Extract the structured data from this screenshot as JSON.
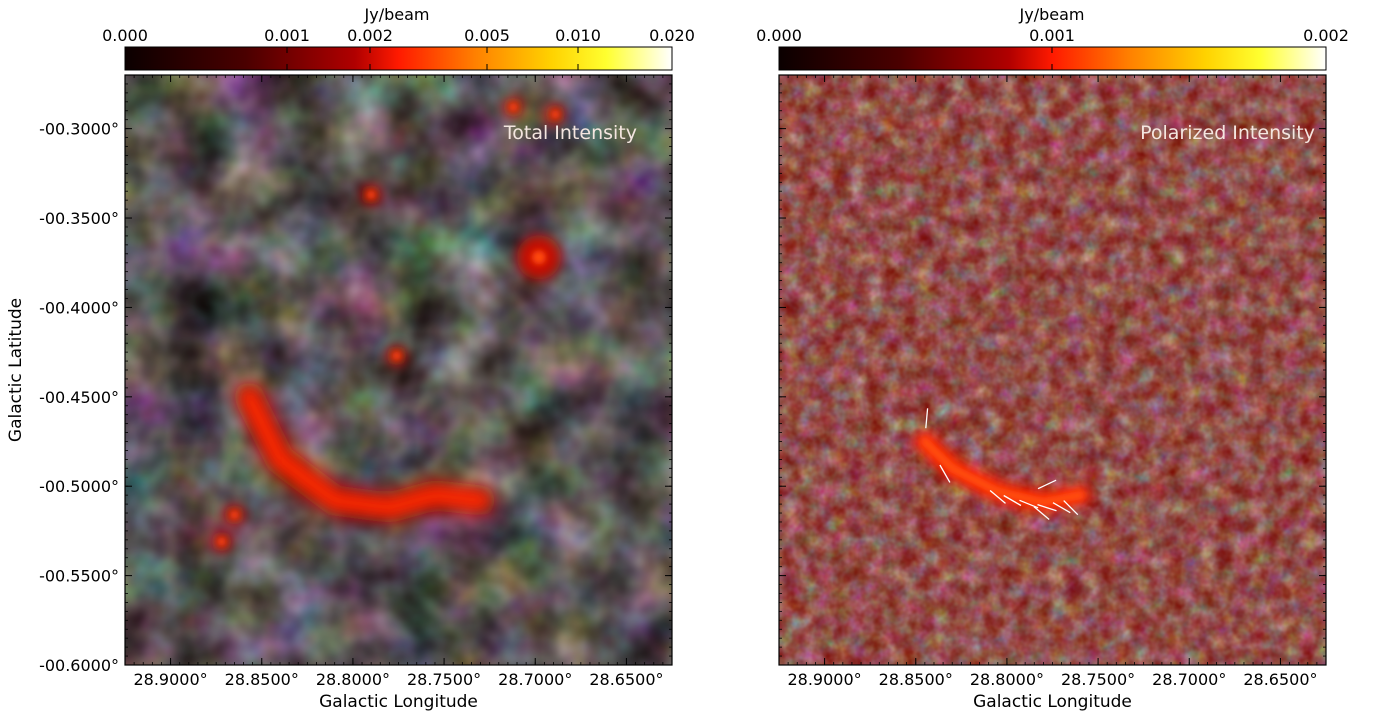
{
  "chart_data": [
    {
      "type": "heatmap",
      "title": "Total Intensity",
      "xlabel": "Galactic Longitude",
      "ylabel": "Galactic Latitude",
      "xlim": [
        28.925,
        28.625
      ],
      "ylim": [
        -0.6,
        -0.27
      ],
      "x_ticks": [
        28.9,
        28.85,
        28.8,
        28.75,
        28.7,
        28.65
      ],
      "x_tick_labels": [
        "28.9000°",
        "28.8500°",
        "28.8000°",
        "28.7500°",
        "28.7000°",
        "28.6500°"
      ],
      "y_ticks": [
        -0.3,
        -0.35,
        -0.4,
        -0.45,
        -0.5,
        -0.55,
        -0.6
      ],
      "y_tick_labels": [
        "-00.3000°",
        "-00.3500°",
        "-00.4000°",
        "-00.4500°",
        "-00.5000°",
        "-00.5500°",
        "-00.6000°"
      ],
      "colorbar": {
        "label": "Jy/beam",
        "ticks": [
          0.0,
          0.001,
          0.002,
          0.005,
          0.01,
          0.02
        ],
        "tick_labels": [
          "0.000",
          "0.001",
          "0.002",
          "0.005",
          "0.010",
          "0.020"
        ],
        "range": [
          0.0,
          0.02
        ],
        "scale": "nonlinear",
        "colormap": "hot"
      },
      "features": [
        {
          "kind": "arc",
          "points": [
            [
              28.857,
              -0.45
            ],
            [
              28.84,
              -0.485
            ],
            [
              28.81,
              -0.508
            ],
            [
              28.78,
              -0.512
            ],
            [
              28.755,
              -0.505
            ],
            [
              28.73,
              -0.508
            ]
          ]
        },
        {
          "kind": "point-source",
          "l": 28.698,
          "b": -0.372
        },
        {
          "kind": "point-source",
          "l": 28.79,
          "b": -0.337
        },
        {
          "kind": "point-source",
          "l": 28.689,
          "b": -0.292
        },
        {
          "kind": "point-source",
          "l": 28.712,
          "b": -0.288
        },
        {
          "kind": "point-source",
          "l": 28.865,
          "b": -0.516
        },
        {
          "kind": "point-source",
          "l": 28.872,
          "b": -0.531
        },
        {
          "kind": "point-source",
          "l": 28.776,
          "b": -0.427
        }
      ]
    },
    {
      "type": "heatmap",
      "title": "Polarized Intensity",
      "xlabel": "Galactic Longitude",
      "ylabel": "",
      "xlim": [
        28.925,
        28.625
      ],
      "ylim": [
        -0.6,
        -0.27
      ],
      "x_ticks": [
        28.9,
        28.85,
        28.8,
        28.75,
        28.7,
        28.65
      ],
      "x_tick_labels": [
        "28.9000°",
        "28.8500°",
        "28.8000°",
        "28.7500°",
        "28.7000°",
        "28.6500°"
      ],
      "colorbar": {
        "label": "Jy/beam",
        "ticks": [
          0.0,
          0.001,
          0.002
        ],
        "tick_labels": [
          "0.000",
          "0.001",
          "0.002"
        ],
        "range": [
          0.0,
          0.002
        ],
        "scale": "nonlinear",
        "colormap": "hot"
      },
      "vectors": [
        {
          "l": 28.844,
          "b": -0.462,
          "angle": 95
        },
        {
          "l": 28.834,
          "b": -0.493,
          "angle": 60
        },
        {
          "l": 28.778,
          "b": -0.499,
          "angle": -25
        },
        {
          "l": 28.805,
          "b": -0.506,
          "angle": 40
        },
        {
          "l": 28.797,
          "b": -0.508,
          "angle": 30
        },
        {
          "l": 28.788,
          "b": -0.51,
          "angle": 22
        },
        {
          "l": 28.778,
          "b": -0.512,
          "angle": 18
        },
        {
          "l": 28.77,
          "b": -0.512,
          "angle": 30
        },
        {
          "l": 28.765,
          "b": -0.512,
          "angle": 45
        },
        {
          "l": 28.781,
          "b": -0.515,
          "angle": 40
        }
      ]
    }
  ]
}
